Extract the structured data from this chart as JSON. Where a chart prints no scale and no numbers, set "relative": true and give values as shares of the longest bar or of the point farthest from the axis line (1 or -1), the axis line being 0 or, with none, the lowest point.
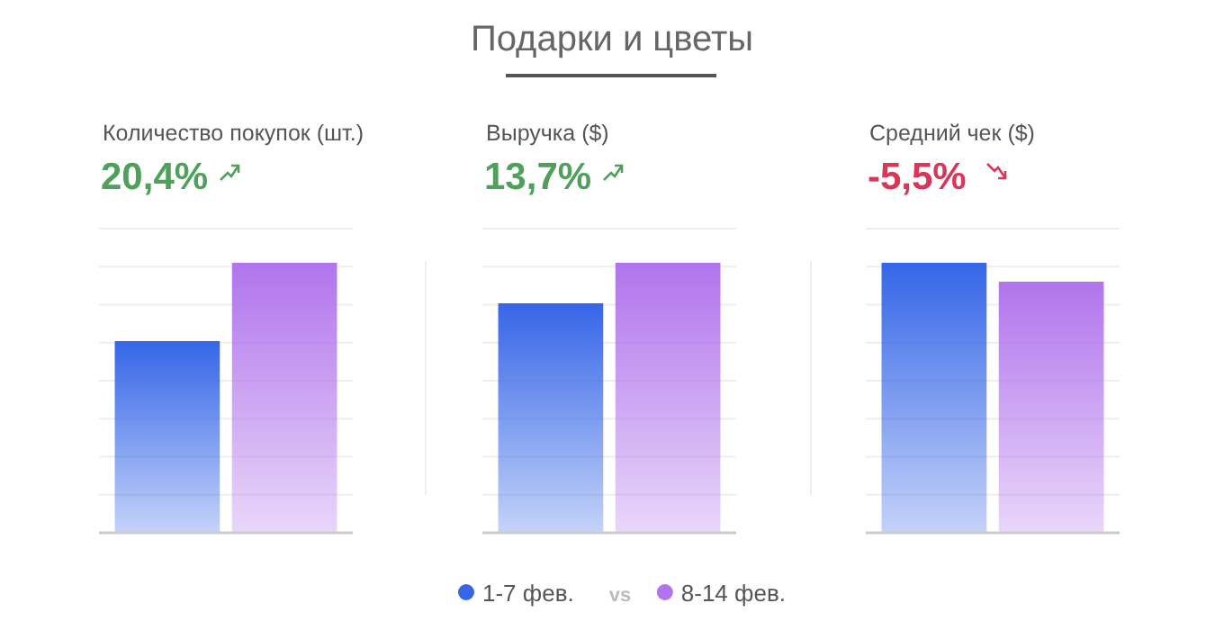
{
  "chart_data": [
    {
      "type": "other",
      "title": "Подарки и цветы"
    },
    {
      "type": "bar",
      "title": "Количество покупок (шт.)",
      "subtitle": "20,4%",
      "categories": [
        null
      ],
      "relative": true,
      "grid": true,
      "legend": "bottom",
      "annotations": [
        "vs"
      ],
      "series": [
        {
          "name": "1-7 фев.",
          "color": "#3566e8",
          "values": [
            0.71
          ]
        },
        {
          "name": "8-14 фев.",
          "color": "#b174ec",
          "values": [
            1
          ]
        }
      ]
    },
    {
      "type": "bar",
      "title": "Выручка ($)",
      "subtitle": "13,7%",
      "categories": [
        null
      ],
      "relative": true,
      "grid": true,
      "series": [
        {
          "color": "#3566e8",
          "values": [
            0.85
          ]
        },
        {
          "color": "#b174ec",
          "values": [
            1
          ]
        }
      ]
    },
    {
      "type": "bar",
      "title": "Средний чек ($)",
      "subtitle": "-5,5%",
      "categories": [
        null
      ],
      "relative": true,
      "grid": true,
      "series": [
        {
          "color": "#3566e8",
          "values": [
            1
          ]
        },
        {
          "color": "#b174ec",
          "values": [
            0.93
          ]
        }
      ]
    }
  ]
}
